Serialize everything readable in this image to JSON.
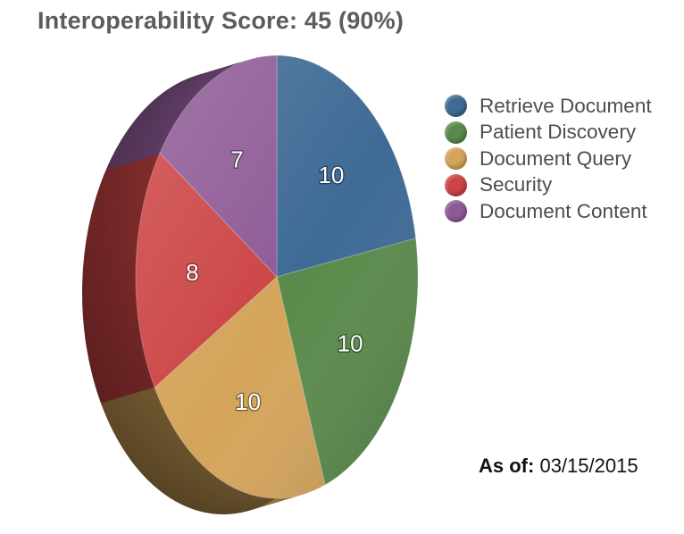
{
  "chart_data": {
    "type": "pie",
    "title": "Interoperability Score: 45 (90%)",
    "categories": [
      "Retrieve Document",
      "Patient Discovery",
      "Document Query",
      "Security",
      "Document Content"
    ],
    "values": [
      10,
      10,
      10,
      8,
      7
    ],
    "colors": [
      "#3e6a95",
      "#5a8a4b",
      "#d4a45a",
      "#cc4444",
      "#8e5a96"
    ],
    "legend_position": "right"
  },
  "as_of": {
    "label": "As of:",
    "date": "03/15/2015"
  }
}
